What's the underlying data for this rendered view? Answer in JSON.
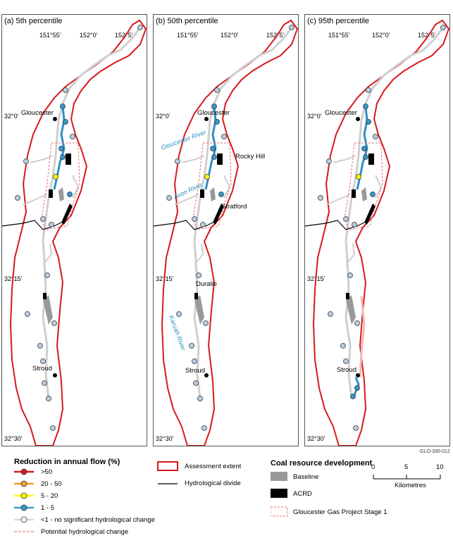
{
  "panels": [
    {
      "title": "(a) 5th percentile"
    },
    {
      "title": "(b) 50th percentile"
    },
    {
      "title": "(c) 95th percentile"
    }
  ],
  "ticks": {
    "lon": [
      "151°55'",
      "152°0'",
      "152°5'"
    ],
    "lat": [
      "32°0'",
      "32°15'",
      "32°30'"
    ]
  },
  "places": {
    "gloucester": "Gloucester",
    "stroud": "Stroud",
    "rocky_hill": "Rocky Hill",
    "stratford": "Stratford",
    "duralie": "Duralie"
  },
  "rivers": {
    "gloucester": "Gloucester River",
    "avon": "Avon River",
    "karuah": "Karuah River"
  },
  "figure_code": "GLO-330-012",
  "legend": {
    "flow_title": "Reduction in annual flow (%)",
    "flow_items": [
      {
        "label": ">50",
        "color": "#d7191c"
      },
      {
        "label": "20 - 50",
        "color": "#f0a030"
      },
      {
        "label": "5 - 20",
        "color": "#ffff00"
      },
      {
        "label": "1 - 5",
        "color": "#3399cc"
      },
      {
        "label": "<1 - no significant hydrological change",
        "color": "#d9d9d9"
      }
    ],
    "potential": "Potential hydrological change",
    "assessment_extent": "Assessment extent",
    "hydro_divide": "Hydrological divide",
    "coal_title": "Coal resource development",
    "baseline": "Baseline",
    "acrd": "ACRD",
    "ggp": "Gloucester Gas Project Stage 1",
    "scale": {
      "ticks": [
        "0",
        "5",
        "10"
      ],
      "unit": "Kilometres"
    }
  },
  "colors": {
    "extent": "#d7191c",
    "stream_grey": "#cfcfcf",
    "stream_blue": "#2e8fc4",
    "gauge_fill": "#b8cde0",
    "gauge_blue": "#3399cc",
    "baseline": "#999999",
    "acrd": "#000000",
    "potential": "#f4b8b8"
  }
}
